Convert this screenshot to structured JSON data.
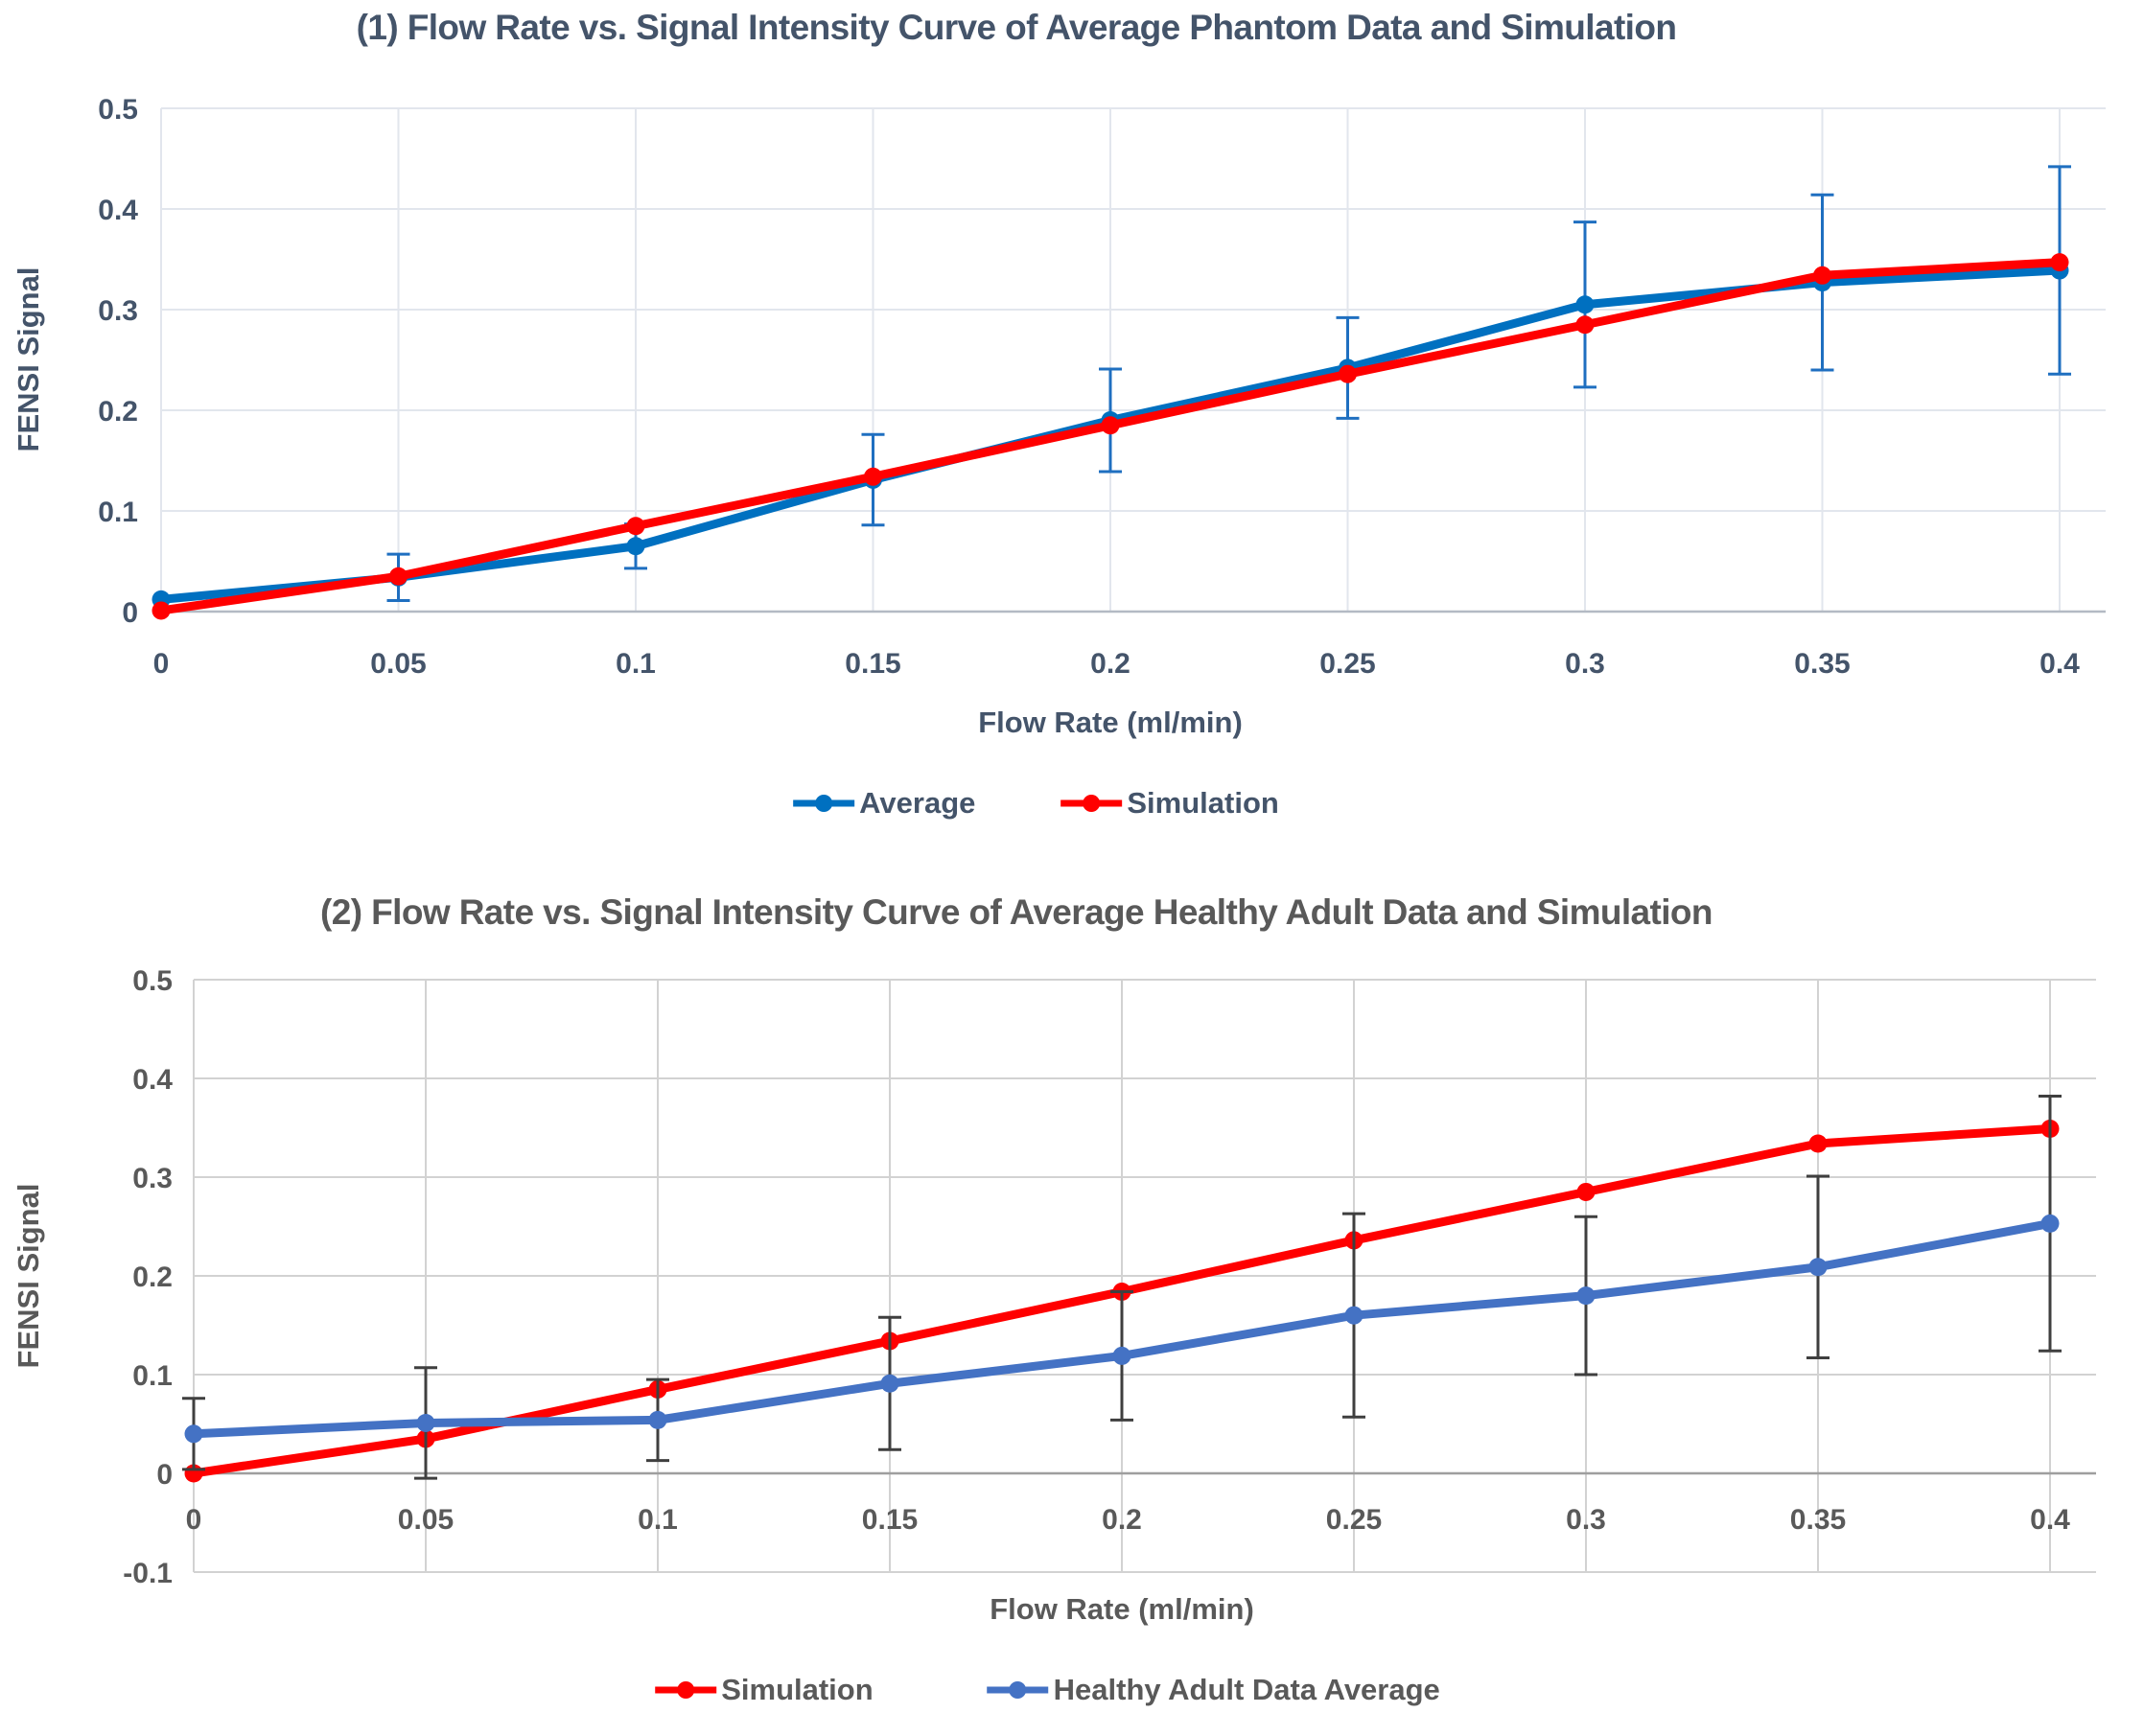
{
  "page": {
    "background": "#FFFFFF"
  },
  "chart_data": [
    {
      "type": "line",
      "title": "(1) Flow Rate vs. Signal Intensity Curve of Average Phantom Data and Simulation",
      "xlabel": "Flow Rate (ml/min)",
      "ylabel": "FENSI Signal",
      "x": [
        0,
        0.05,
        0.1,
        0.15,
        0.2,
        0.25,
        0.3,
        0.35,
        0.4
      ],
      "x_tick_labels": [
        "0",
        "0.05",
        "0.1",
        "0.15",
        "0.2",
        "0.25",
        "0.3",
        "0.35",
        "0.4"
      ],
      "y_ticks": [
        0,
        0.1,
        0.2,
        0.3,
        0.4,
        0.5
      ],
      "y_tick_labels": [
        "0",
        "0.1",
        "0.2",
        "0.3",
        "0.4",
        "0.5"
      ],
      "xlim": [
        0,
        0.4
      ],
      "ylim": [
        0,
        0.5
      ],
      "grid": true,
      "legend_position": "bottom",
      "text_color": "#44546A",
      "grid_color": "#E2E6ED",
      "axis_line_color": "#B3BAC4",
      "series": [
        {
          "name": "Average",
          "color": "#0070C0",
          "values": [
            0.012,
            0.034,
            0.065,
            0.131,
            0.19,
            0.242,
            0.305,
            0.327,
            0.339
          ],
          "error": [
            0,
            0.023,
            0.022,
            0.045,
            0.051,
            0.05,
            0.082,
            0.087,
            0.103
          ],
          "error_color": "#1F6FC0"
        },
        {
          "name": "Simulation",
          "color": "#FF0000",
          "values": [
            0.001,
            0.035,
            0.085,
            0.134,
            0.185,
            0.236,
            0.285,
            0.334,
            0.347
          ]
        }
      ]
    },
    {
      "type": "line",
      "title": "(2) Flow Rate vs. Signal Intensity Curve of Average Healthy Adult Data and Simulation",
      "xlabel": "Flow Rate (ml/min)",
      "ylabel": "FENSI Signal",
      "x": [
        0,
        0.05,
        0.1,
        0.15,
        0.2,
        0.25,
        0.3,
        0.35,
        0.4
      ],
      "x_tick_labels": [
        "0",
        "0.05",
        "0.1",
        "0.15",
        "0.2",
        "0.25",
        "0.3",
        "0.35",
        "0.4"
      ],
      "y_ticks": [
        -0.1,
        0,
        0.1,
        0.2,
        0.3,
        0.4,
        0.5
      ],
      "y_tick_labels": [
        "-0.1",
        "0",
        "0.1",
        "0.2",
        "0.3",
        "0.4",
        "0.5"
      ],
      "xlim": [
        0,
        0.4
      ],
      "ylim": [
        -0.1,
        0.5
      ],
      "grid": true,
      "legend_position": "bottom",
      "text_color": "#595959",
      "grid_color": "#D2D2D2",
      "axis_line_color": "#9E9E9E",
      "series": [
        {
          "name": "Simulation",
          "color": "#FF0000",
          "values": [
            0.0,
            0.035,
            0.085,
            0.134,
            0.184,
            0.236,
            0.285,
            0.334,
            0.349
          ]
        },
        {
          "name": "Healthy Adult Data Average",
          "color": "#4472C4",
          "values": [
            0.04,
            0.051,
            0.054,
            0.091,
            0.119,
            0.16,
            0.18,
            0.209,
            0.253
          ],
          "error": [
            0.036,
            0.056,
            0.041,
            0.067,
            0.065,
            0.103,
            0.08,
            0.092,
            0.129
          ],
          "error_color": "#3F3F3F"
        }
      ]
    }
  ]
}
